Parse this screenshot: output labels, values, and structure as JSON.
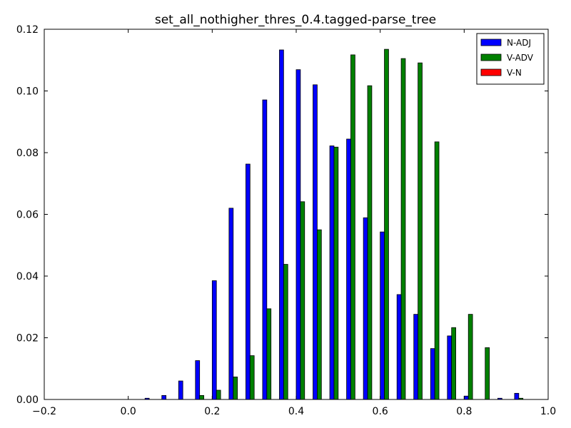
{
  "chart_data": {
    "type": "bar",
    "title": "set_all_nothigher_thres_0.4.tagged-parse_tree",
    "xlabel": "",
    "ylabel": "",
    "xlim": [
      -0.2,
      1.0
    ],
    "ylim": [
      0.0,
      0.12
    ],
    "x_ticks": [
      "−0.2",
      "0.0",
      "0.2",
      "0.4",
      "0.6",
      "0.8",
      "1.0"
    ],
    "y_ticks": [
      "0.00",
      "0.02",
      "0.04",
      "0.06",
      "0.08",
      "0.10",
      "0.12"
    ],
    "grid": false,
    "legend_position": "top-right",
    "bin_starts": [
      -0.2,
      -0.16,
      -0.12,
      -0.08,
      -0.04,
      0.0,
      0.04,
      0.08,
      0.12,
      0.16,
      0.2,
      0.24,
      0.28,
      0.32,
      0.36,
      0.4,
      0.44,
      0.48,
      0.52,
      0.56,
      0.6,
      0.64,
      0.68,
      0.72,
      0.76,
      0.8,
      0.84,
      0.88,
      0.92
    ],
    "bin_width": 0.04,
    "series": [
      {
        "name": "N-ADJ",
        "color": "#0000ff",
        "values": [
          0.0,
          0.0,
          0.0,
          0.0,
          0.0,
          0.0,
          0.0004,
          0.0013,
          0.006,
          0.0126,
          0.0385,
          0.062,
          0.0763,
          0.0971,
          0.1133,
          0.1069,
          0.102,
          0.0822,
          0.0844,
          0.0589,
          0.0543,
          0.034,
          0.0276,
          0.0165,
          0.0206,
          0.0011,
          0.0,
          0.0004,
          0.002
        ]
      },
      {
        "name": "V-ADV",
        "color": "#008000",
        "values": [
          0.0,
          0.0,
          0.0,
          0.0,
          0.0,
          0.0,
          0.0,
          0.0,
          0.0,
          0.0013,
          0.003,
          0.0073,
          0.0142,
          0.0294,
          0.0438,
          0.0641,
          0.055,
          0.0818,
          0.1117,
          0.1017,
          0.1135,
          0.1105,
          0.1091,
          0.0835,
          0.0233,
          0.0276,
          0.0168,
          0.0,
          0.0004
        ]
      },
      {
        "name": "V-N",
        "color": "#ff0000",
        "values": [
          0.0,
          0.0,
          0.0,
          0.0,
          0.0,
          0.0,
          0.0,
          0.0,
          0.0,
          0.0,
          0.0,
          0.0,
          0.0,
          0.0,
          0.0,
          0.0,
          0.0,
          0.0,
          0.0,
          0.0,
          0.0,
          0.0,
          0.0,
          0.0,
          0.0,
          0.0,
          0.0,
          0.0,
          0.0
        ]
      }
    ]
  }
}
